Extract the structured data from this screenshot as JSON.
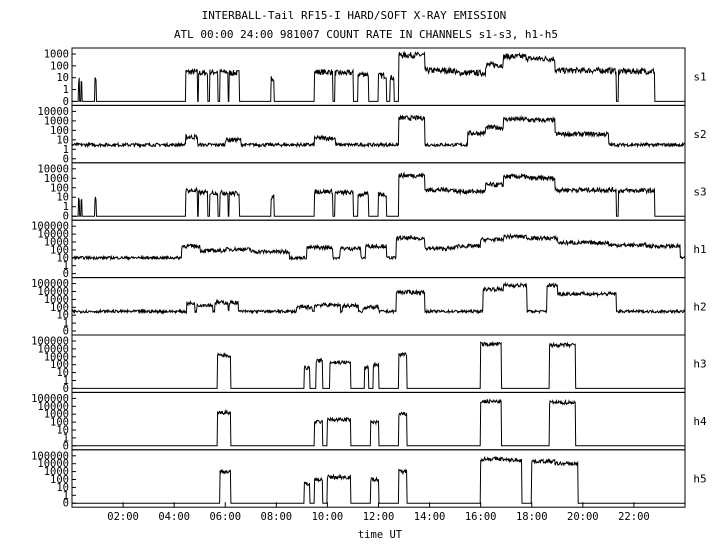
{
  "chart_data": {
    "type": "line",
    "title": "INTERBALL-Tail RF15-I HARD/SOFT X-RAY EMISSION",
    "subtitle": "ATL 00:00 24:00 981007  COUNT RATE IN CHANNELS s1-s3, h1-h5",
    "xlabel": "time UT",
    "x_range_hours": [
      0,
      24
    ],
    "x_ticks": [
      "02:00",
      "04:00",
      "06:00",
      "08:00",
      "10:00",
      "12:00",
      "14:00",
      "16:00",
      "18:00",
      "20:00",
      "22:00"
    ],
    "y_scale": "log",
    "grid": false,
    "panels": [
      {
        "channel": "s1",
        "y_tick_labels": [
          "1000",
          "100",
          "10",
          "1",
          "0"
        ],
        "baseline": 0,
        "bursts": [
          [
            0.25,
            0.28,
            6
          ],
          [
            0.35,
            0.39,
            6
          ],
          [
            0.9,
            0.95,
            8
          ],
          [
            4.45,
            4.9,
            30
          ],
          [
            4.95,
            5.3,
            25
          ],
          [
            5.4,
            5.7,
            30
          ],
          [
            5.8,
            6.1,
            30
          ],
          [
            6.15,
            6.55,
            25
          ],
          [
            7.8,
            7.9,
            10
          ],
          [
            9.5,
            10.2,
            30
          ],
          [
            10.3,
            11.0,
            25
          ],
          [
            11.2,
            11.6,
            20
          ],
          [
            12.0,
            12.3,
            15
          ],
          [
            12.45,
            12.6,
            10
          ],
          [
            12.8,
            13.8,
            800
          ],
          [
            13.8,
            15.0,
            40
          ],
          [
            15.0,
            16.2,
            25
          ],
          [
            16.2,
            16.9,
            120
          ],
          [
            16.9,
            17.8,
            600
          ],
          [
            17.8,
            18.9,
            400
          ],
          [
            18.9,
            21.3,
            40
          ],
          [
            21.4,
            22.8,
            35
          ]
        ]
      },
      {
        "channel": "s2",
        "y_tick_labels": [
          "10000",
          "1000",
          "100",
          "10",
          "1",
          "0"
        ],
        "baseline": 3,
        "bursts": [
          [
            4.45,
            4.9,
            20
          ],
          [
            6.0,
            6.6,
            10
          ],
          [
            9.5,
            10.3,
            15
          ],
          [
            12.8,
            13.8,
            2000
          ],
          [
            15.5,
            16.2,
            50
          ],
          [
            16.2,
            16.9,
            200
          ],
          [
            16.9,
            17.8,
            1500
          ],
          [
            17.8,
            18.9,
            1200
          ],
          [
            18.9,
            21.0,
            40
          ]
        ]
      },
      {
        "channel": "s3",
        "y_tick_labels": [
          "10000",
          "1000",
          "100",
          "10",
          "1",
          "0"
        ],
        "baseline": 0,
        "bursts": [
          [
            0.25,
            0.28,
            6
          ],
          [
            0.35,
            0.39,
            6
          ],
          [
            0.9,
            0.95,
            8
          ],
          [
            4.45,
            4.9,
            50
          ],
          [
            4.95,
            5.3,
            30
          ],
          [
            5.4,
            5.7,
            30
          ],
          [
            5.8,
            6.1,
            30
          ],
          [
            6.15,
            6.55,
            25
          ],
          [
            7.8,
            7.9,
            10
          ],
          [
            9.5,
            10.2,
            40
          ],
          [
            10.3,
            11.0,
            30
          ],
          [
            11.2,
            11.6,
            20
          ],
          [
            12.0,
            12.3,
            20
          ],
          [
            12.8,
            13.8,
            2000
          ],
          [
            13.8,
            15.0,
            60
          ],
          [
            15.0,
            16.2,
            40
          ],
          [
            16.2,
            16.9,
            200
          ],
          [
            16.9,
            17.8,
            1500
          ],
          [
            17.8,
            18.9,
            1000
          ],
          [
            18.9,
            21.3,
            60
          ],
          [
            21.4,
            22.8,
            50
          ]
        ]
      },
      {
        "channel": "h1",
        "y_tick_labels": [
          "100000",
          "10000",
          "1000",
          "100",
          "10",
          "1",
          "0"
        ],
        "baseline": 10,
        "bursts": [
          [
            4.3,
            5.0,
            300
          ],
          [
            5.0,
            6.0,
            80
          ],
          [
            6.0,
            7.0,
            120
          ],
          [
            7.0,
            8.5,
            60
          ],
          [
            9.2,
            10.2,
            200
          ],
          [
            10.5,
            11.3,
            150
          ],
          [
            11.5,
            12.3,
            300
          ],
          [
            12.7,
            13.8,
            3000
          ],
          [
            13.8,
            15.0,
            150
          ],
          [
            15.0,
            16.0,
            300
          ],
          [
            16.0,
            16.9,
            2000
          ],
          [
            16.9,
            17.8,
            5000
          ],
          [
            17.8,
            19.0,
            3000
          ],
          [
            19.0,
            21.0,
            800
          ],
          [
            21.0,
            22.5,
            400
          ],
          [
            22.5,
            23.8,
            300
          ]
        ]
      },
      {
        "channel": "h2",
        "y_tick_labels": [
          "100000",
          "10000",
          "1000",
          "100",
          "10",
          "1",
          "0"
        ],
        "baseline": 30,
        "bursts": [
          [
            4.5,
            4.8,
            300
          ],
          [
            4.9,
            5.5,
            200
          ],
          [
            5.6,
            6.1,
            400
          ],
          [
            6.15,
            6.5,
            400
          ],
          [
            8.8,
            9.4,
            100
          ],
          [
            9.5,
            10.5,
            200
          ],
          [
            10.6,
            11.2,
            150
          ],
          [
            11.4,
            12.0,
            100
          ],
          [
            12.7,
            13.8,
            8000
          ],
          [
            16.1,
            16.9,
            20000
          ],
          [
            16.9,
            17.8,
            60000
          ],
          [
            18.6,
            19.0,
            60000
          ],
          [
            19.0,
            21.3,
            5000
          ]
        ]
      },
      {
        "channel": "h3",
        "y_tick_labels": [
          "100000",
          "10000",
          "1000",
          "100",
          "10",
          "1",
          "0"
        ],
        "baseline": 0,
        "bursts": [
          [
            5.7,
            6.2,
            1500
          ],
          [
            9.1,
            9.3,
            40
          ],
          [
            9.55,
            9.8,
            300
          ],
          [
            10.1,
            10.9,
            200
          ],
          [
            11.45,
            11.6,
            40
          ],
          [
            11.8,
            12.0,
            100
          ],
          [
            12.8,
            13.1,
            2000
          ],
          [
            16.0,
            16.8,
            40000
          ],
          [
            18.7,
            19.7,
            30000
          ]
        ]
      },
      {
        "channel": "h4",
        "y_tick_labels": [
          "100000",
          "10000",
          "1000",
          "100",
          "10",
          "1",
          "0"
        ],
        "baseline": 0,
        "bursts": [
          [
            5.7,
            6.2,
            1500
          ],
          [
            9.5,
            9.8,
            100
          ],
          [
            10.0,
            10.9,
            200
          ],
          [
            11.7,
            12.0,
            100
          ],
          [
            12.8,
            13.1,
            1000
          ],
          [
            16.0,
            16.8,
            40000
          ],
          [
            18.7,
            19.7,
            30000
          ]
        ]
      },
      {
        "channel": "h5",
        "y_tick_labels": [
          "100000",
          "10000",
          "1000",
          "100",
          "10",
          "1",
          "0"
        ],
        "baseline": 0,
        "bursts": [
          [
            5.8,
            6.2,
            1000
          ],
          [
            9.1,
            9.3,
            30
          ],
          [
            9.5,
            9.8,
            100
          ],
          [
            10.0,
            10.9,
            200
          ],
          [
            11.7,
            12.0,
            100
          ],
          [
            12.8,
            13.1,
            1000
          ],
          [
            16.0,
            16.9,
            40000
          ],
          [
            16.9,
            17.6,
            30000
          ],
          [
            18.0,
            18.9,
            20000
          ],
          [
            18.9,
            19.8,
            10000
          ]
        ]
      }
    ]
  }
}
